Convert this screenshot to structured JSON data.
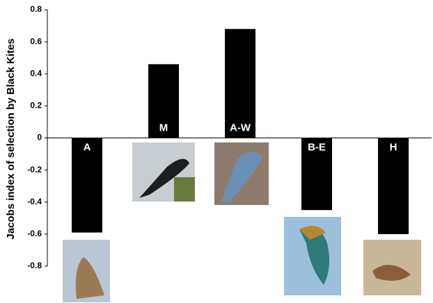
{
  "chart_data": {
    "type": "bar",
    "ylabel": "Jacobs index of selection by Black Kites",
    "categories": [
      "A",
      "M",
      "A-W",
      "B-E",
      "H"
    ],
    "values": [
      -0.59,
      0.46,
      0.68,
      -0.45,
      -0.6
    ],
    "color": "#000000",
    "ylim": [
      -0.8,
      0.8
    ],
    "yticks": [
      -0.8,
      -0.6,
      -0.4,
      -0.2,
      0,
      0.2,
      0.4,
      0.6,
      0.8
    ],
    "grid": false
  }
}
